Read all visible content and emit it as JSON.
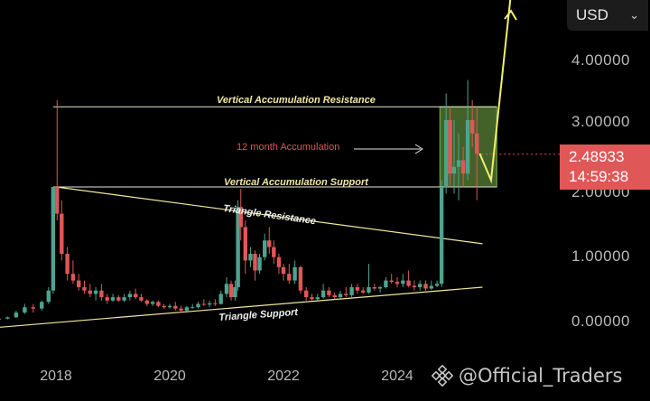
{
  "currency_selector": {
    "label": "USD"
  },
  "price_tag": {
    "price": "2.48933",
    "countdown": "14:59:38"
  },
  "annotations": {
    "resistance": "Vertical Accumulation Resistance",
    "accumulation": "12 month Accumulation",
    "support": "Vertical Accumulation Support",
    "triangle_resistance": "Triangle Resistance",
    "triangle_support": "Triangle Support"
  },
  "watermark": {
    "text": "@Official_Traders",
    "icon": "binance-logo-icon"
  },
  "colors": {
    "up": "#4ea38f",
    "down": "#e05757",
    "resistance_line": "#e8e6d6",
    "triangle": "#f2e7a0",
    "accumulation_box": "#7ab24a",
    "arrow": "#f1f06a"
  },
  "chart_data": {
    "type": "candlestick",
    "y_ticks": [
      "0.00000",
      "1.00000",
      "2.00000",
      "3.00000",
      "4.00000"
    ],
    "ylim": [
      -0.3,
      4.8
    ],
    "x_ticks": [
      "2018",
      "2020",
      "2022",
      "2024"
    ],
    "xlim": [
      2017.0,
      2026.0
    ],
    "levels": {
      "vertical_accumulation_resistance": 3.2,
      "vertical_accumulation_support": 2.0
    },
    "triangle_resistance": [
      [
        2018.0,
        2.0
      ],
      [
        2025.5,
        1.15
      ]
    ],
    "triangle_support": [
      [
        2017.0,
        -0.1
      ],
      [
        2025.5,
        0.5
      ]
    ],
    "accumulation_box": {
      "x": [
        2024.75,
        2025.75
      ],
      "y": [
        2.0,
        3.2
      ]
    },
    "projection_path": [
      [
        2025.45,
        2.5
      ],
      [
        2025.65,
        2.1
      ],
      [
        2026.0,
        4.9
      ]
    ],
    "candles": [
      [
        2017.0,
        0.02,
        0.03,
        0.01,
        0.03
      ],
      [
        2017.15,
        0.03,
        0.06,
        0.02,
        0.05
      ],
      [
        2017.3,
        0.05,
        0.15,
        0.04,
        0.12
      ],
      [
        2017.45,
        0.12,
        0.25,
        0.1,
        0.2
      ],
      [
        2017.6,
        0.2,
        0.25,
        0.12,
        0.18
      ],
      [
        2017.75,
        0.18,
        0.3,
        0.15,
        0.28
      ],
      [
        2017.87,
        0.28,
        0.5,
        0.25,
        0.45
      ],
      [
        2017.95,
        0.45,
        2.0,
        0.4,
        2.0
      ],
      [
        2018.02,
        2.0,
        3.3,
        1.5,
        1.6
      ],
      [
        2018.1,
        1.6,
        1.8,
        0.9,
        1.0
      ],
      [
        2018.2,
        1.0,
        1.1,
        0.6,
        0.7
      ],
      [
        2018.3,
        0.7,
        0.9,
        0.55,
        0.6
      ],
      [
        2018.4,
        0.6,
        0.7,
        0.45,
        0.5
      ],
      [
        2018.5,
        0.5,
        0.6,
        0.4,
        0.45
      ],
      [
        2018.6,
        0.45,
        0.55,
        0.35,
        0.4
      ],
      [
        2018.7,
        0.4,
        0.5,
        0.3,
        0.45
      ],
      [
        2018.8,
        0.45,
        0.55,
        0.3,
        0.35
      ],
      [
        2018.9,
        0.35,
        0.4,
        0.25,
        0.3
      ],
      [
        2019.0,
        0.3,
        0.4,
        0.28,
        0.35
      ],
      [
        2019.1,
        0.35,
        0.38,
        0.28,
        0.3
      ],
      [
        2019.2,
        0.3,
        0.4,
        0.28,
        0.35
      ],
      [
        2019.3,
        0.35,
        0.45,
        0.3,
        0.4
      ],
      [
        2019.4,
        0.4,
        0.48,
        0.32,
        0.35
      ],
      [
        2019.5,
        0.35,
        0.4,
        0.28,
        0.3
      ],
      [
        2019.6,
        0.3,
        0.32,
        0.22,
        0.25
      ],
      [
        2019.7,
        0.25,
        0.3,
        0.22,
        0.28
      ],
      [
        2019.8,
        0.28,
        0.3,
        0.2,
        0.22
      ],
      [
        2019.9,
        0.22,
        0.25,
        0.18,
        0.2
      ],
      [
        2020.0,
        0.2,
        0.25,
        0.18,
        0.22
      ],
      [
        2020.1,
        0.22,
        0.28,
        0.15,
        0.18
      ],
      [
        2020.2,
        0.18,
        0.22,
        0.12,
        0.15
      ],
      [
        2020.3,
        0.15,
        0.22,
        0.14,
        0.2
      ],
      [
        2020.4,
        0.2,
        0.25,
        0.18,
        0.2
      ],
      [
        2020.5,
        0.2,
        0.28,
        0.18,
        0.25
      ],
      [
        2020.6,
        0.25,
        0.32,
        0.22,
        0.24
      ],
      [
        2020.7,
        0.24,
        0.3,
        0.2,
        0.26
      ],
      [
        2020.8,
        0.26,
        0.32,
        0.22,
        0.25
      ],
      [
        2020.9,
        0.25,
        0.45,
        0.24,
        0.4
      ],
      [
        2021.0,
        0.4,
        0.65,
        0.35,
        0.55
      ],
      [
        2021.08,
        0.55,
        0.6,
        0.3,
        0.35
      ],
      [
        2021.15,
        0.35,
        0.6,
        0.3,
        0.5
      ],
      [
        2021.2,
        0.5,
        1.8,
        0.45,
        1.7
      ],
      [
        2021.25,
        1.7,
        1.97,
        1.2,
        1.4
      ],
      [
        2021.33,
        1.4,
        1.5,
        0.7,
        0.9
      ],
      [
        2021.42,
        0.9,
        1.1,
        0.8,
        1.0
      ],
      [
        2021.5,
        1.0,
        1.05,
        0.6,
        0.75
      ],
      [
        2021.58,
        0.75,
        1.0,
        0.7,
        0.95
      ],
      [
        2021.67,
        0.95,
        1.3,
        0.9,
        1.2
      ],
      [
        2021.75,
        1.2,
        1.4,
        1.0,
        1.1
      ],
      [
        2021.83,
        1.1,
        1.2,
        0.85,
        0.95
      ],
      [
        2021.92,
        0.95,
        1.0,
        0.7,
        0.8
      ],
      [
        2022.0,
        0.8,
        0.85,
        0.6,
        0.7
      ],
      [
        2022.1,
        0.7,
        0.85,
        0.55,
        0.6
      ],
      [
        2022.2,
        0.6,
        0.9,
        0.55,
        0.8
      ],
      [
        2022.3,
        0.8,
        0.82,
        0.4,
        0.45
      ],
      [
        2022.4,
        0.45,
        0.5,
        0.3,
        0.35
      ],
      [
        2022.5,
        0.35,
        0.4,
        0.3,
        0.32
      ],
      [
        2022.6,
        0.32,
        0.4,
        0.3,
        0.35
      ],
      [
        2022.7,
        0.35,
        0.55,
        0.33,
        0.45
      ],
      [
        2022.8,
        0.45,
        0.5,
        0.35,
        0.38
      ],
      [
        2022.9,
        0.38,
        0.42,
        0.32,
        0.35
      ],
      [
        2023.0,
        0.35,
        0.45,
        0.33,
        0.4
      ],
      [
        2023.1,
        0.4,
        0.5,
        0.35,
        0.38
      ],
      [
        2023.2,
        0.38,
        0.55,
        0.35,
        0.5
      ],
      [
        2023.3,
        0.5,
        0.55,
        0.4,
        0.45
      ],
      [
        2023.4,
        0.45,
        0.5,
        0.4,
        0.42
      ],
      [
        2023.5,
        0.42,
        0.85,
        0.4,
        0.5
      ],
      [
        2023.6,
        0.5,
        0.55,
        0.45,
        0.48
      ],
      [
        2023.7,
        0.48,
        0.52,
        0.42,
        0.5
      ],
      [
        2023.8,
        0.5,
        0.65,
        0.48,
        0.6
      ],
      [
        2023.9,
        0.6,
        0.7,
        0.55,
        0.58
      ],
      [
        2024.0,
        0.58,
        0.65,
        0.5,
        0.55
      ],
      [
        2024.1,
        0.55,
        0.7,
        0.5,
        0.6
      ],
      [
        2024.2,
        0.6,
        0.75,
        0.5,
        0.52
      ],
      [
        2024.3,
        0.52,
        0.6,
        0.45,
        0.5
      ],
      [
        2024.4,
        0.5,
        0.6,
        0.45,
        0.55
      ],
      [
        2024.5,
        0.55,
        0.6,
        0.45,
        0.48
      ],
      [
        2024.6,
        0.48,
        0.6,
        0.46,
        0.52
      ],
      [
        2024.7,
        0.52,
        0.6,
        0.5,
        0.55
      ],
      [
        2024.78,
        0.55,
        2.1,
        0.5,
        2.0
      ],
      [
        2024.86,
        2.0,
        3.4,
        1.9,
        3.0
      ],
      [
        2024.93,
        3.0,
        3.2,
        2.0,
        2.2
      ],
      [
        2025.0,
        2.2,
        3.0,
        1.9,
        2.3
      ],
      [
        2025.08,
        2.3,
        2.8,
        1.8,
        2.4
      ],
      [
        2025.16,
        2.4,
        2.6,
        2.0,
        2.2
      ],
      [
        2025.24,
        2.2,
        3.6,
        2.1,
        3.0
      ],
      [
        2025.32,
        3.0,
        3.3,
        2.6,
        2.8
      ],
      [
        2025.4,
        2.8,
        3.2,
        1.8,
        2.5
      ]
    ]
  }
}
